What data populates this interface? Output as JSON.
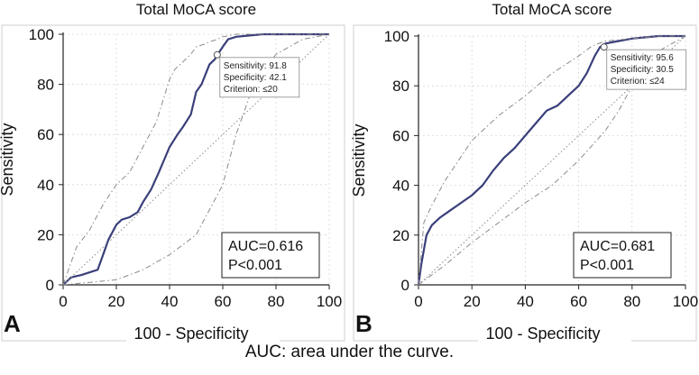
{
  "caption": "AUC: area under the curve.",
  "chart_data": [
    {
      "type": "line",
      "panel_label": "A",
      "title": "Total MoCA score",
      "xlabel": "100 - Specificity",
      "ylabel": "Sensitivity",
      "xlim": [
        0,
        100
      ],
      "ylim": [
        0,
        100
      ],
      "xticks": [
        "0",
        "20",
        "40",
        "60",
        "80",
        "100"
      ],
      "yticks": [
        "0",
        "20",
        "40",
        "60",
        "80",
        "100"
      ],
      "grid": true,
      "series": [
        {
          "role": "roc",
          "color": "#3a3f7a",
          "x": [
            0,
            3,
            7,
            10,
            13,
            15,
            17,
            20,
            22,
            25,
            28,
            30,
            33,
            36,
            38,
            40,
            43,
            45,
            48,
            50,
            52,
            55,
            57,
            58,
            60,
            62,
            65,
            70,
            75,
            80,
            90,
            100
          ],
          "y": [
            0,
            3,
            4,
            5,
            6,
            12,
            18,
            24,
            26,
            27,
            29,
            33,
            38,
            45,
            50,
            55,
            60,
            63,
            68,
            77,
            80,
            88,
            90,
            91.8,
            95,
            98,
            99,
            99.5,
            100,
            100,
            100,
            100
          ]
        },
        {
          "role": "ci-upper",
          "color": "#8a8a8a",
          "x": [
            0,
            5,
            10,
            15,
            20,
            25,
            30,
            35,
            40,
            42,
            45,
            48,
            50,
            53,
            55,
            58,
            60,
            65,
            70,
            80,
            90,
            100
          ],
          "y": [
            0,
            15,
            22,
            32,
            40,
            45,
            55,
            65,
            82,
            86,
            89,
            92,
            95,
            96,
            97,
            98,
            99,
            100,
            100,
            100,
            100,
            100
          ]
        },
        {
          "role": "ci-lower",
          "color": "#8a8a8a",
          "x": [
            0,
            10,
            20,
            30,
            40,
            50,
            55,
            60,
            65,
            70,
            75,
            80,
            90,
            100
          ],
          "y": [
            0,
            1,
            2,
            6,
            12,
            20,
            30,
            40,
            60,
            75,
            85,
            92,
            98,
            100
          ]
        },
        {
          "role": "reference",
          "color": "#8a8a8a",
          "x": [
            0,
            100
          ],
          "y": [
            0,
            100
          ]
        }
      ],
      "criterion_point": {
        "x": 57.9,
        "y": 91.8
      },
      "annotation": {
        "sensitivity": "Sensitivity: 91.8",
        "specificity": "Specificity: 42.1",
        "criterion": "Criterion: ≤20"
      },
      "auc_box": {
        "auc": "AUC=0.616",
        "p": "P<0.001"
      }
    },
    {
      "type": "line",
      "panel_label": "B",
      "title": "Total MoCA score",
      "xlabel": "100 - Specificity",
      "ylabel": "Sensitivity",
      "xlim": [
        0,
        100
      ],
      "ylim": [
        0,
        100
      ],
      "xticks": [
        "0",
        "20",
        "40",
        "60",
        "80",
        "100"
      ],
      "yticks": [
        "0",
        "20",
        "40",
        "60",
        "80",
        "100"
      ],
      "grid": true,
      "series": [
        {
          "role": "roc",
          "color": "#3a3f7a",
          "x": [
            0,
            1,
            2,
            3,
            5,
            8,
            12,
            16,
            20,
            24,
            28,
            32,
            36,
            40,
            44,
            48,
            52,
            56,
            60,
            63,
            66,
            68,
            70,
            75,
            80,
            85,
            90,
            95,
            100
          ],
          "y": [
            0,
            8,
            14,
            20,
            24,
            27,
            30,
            33,
            36,
            40,
            46,
            51,
            55,
            60,
            65,
            70,
            72,
            76,
            80,
            85,
            92,
            95.6,
            97,
            98,
            99,
            99.5,
            100,
            100,
            100
          ]
        },
        {
          "role": "ci-upper",
          "color": "#8a8a8a",
          "x": [
            0,
            2,
            5,
            10,
            20,
            30,
            40,
            50,
            60,
            65,
            70,
            80,
            90,
            100
          ],
          "y": [
            0,
            25,
            32,
            42,
            58,
            68,
            76,
            85,
            92,
            96,
            98,
            99,
            100,
            100
          ]
        },
        {
          "role": "ci-lower",
          "color": "#8a8a8a",
          "x": [
            0,
            10,
            20,
            30,
            40,
            50,
            60,
            70,
            75,
            80,
            85,
            90,
            100
          ],
          "y": [
            0,
            8,
            17,
            25,
            33,
            40,
            50,
            62,
            70,
            80,
            88,
            94,
            100
          ]
        },
        {
          "role": "reference",
          "color": "#8a8a8a",
          "x": [
            0,
            100
          ],
          "y": [
            0,
            100
          ]
        }
      ],
      "criterion_point": {
        "x": 69.5,
        "y": 95.6
      },
      "annotation": {
        "sensitivity": "Sensitivity: 95.6",
        "specificity": "Specificity: 30.5",
        "criterion": "Criterion: ≤24"
      },
      "auc_box": {
        "auc": "AUC=0.681",
        "p": "P<0.001"
      }
    }
  ]
}
